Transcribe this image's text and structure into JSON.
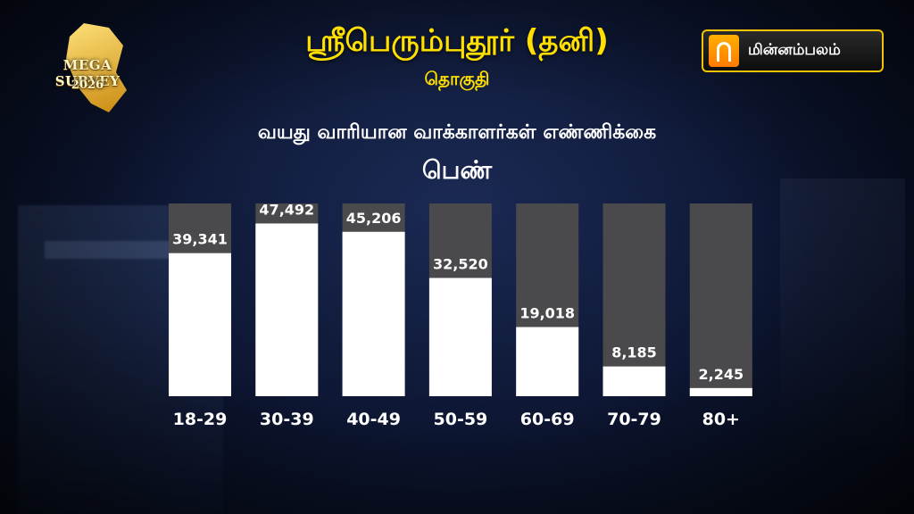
{
  "header": {
    "title": "ஸ்ரீபெரும்புதூர் (தனி)",
    "subtitle": "தொகுதி",
    "heading": "வயது வாரியான வாக்காளர்கள் எண்ணிக்கை",
    "gender": "பெண்"
  },
  "logo": {
    "line1": "MEGA SURVEY",
    "line2": "2026"
  },
  "brand": {
    "name": "மின்னம்பலம்"
  },
  "colors": {
    "title": "#ffe000",
    "bar_fill": "#ffffff",
    "bar_track": "#4a4a4d",
    "background": "#0c1530"
  },
  "chart_data": {
    "type": "bar",
    "title": "வயது வாரியான வாக்காளர்கள் எண்ணிக்கை",
    "categories": [
      "18-29",
      "30-39",
      "40-49",
      "50-59",
      "60-69",
      "70-79",
      "80+"
    ],
    "values": [
      39341,
      47492,
      45206,
      32520,
      19018,
      8185,
      2245
    ],
    "value_labels": [
      "39,341",
      "47,492",
      "45,206",
      "32,520",
      "19,018",
      "8,185",
      "2,245"
    ],
    "ylim": [
      0,
      53000
    ],
    "grid": false,
    "legend": "none"
  }
}
